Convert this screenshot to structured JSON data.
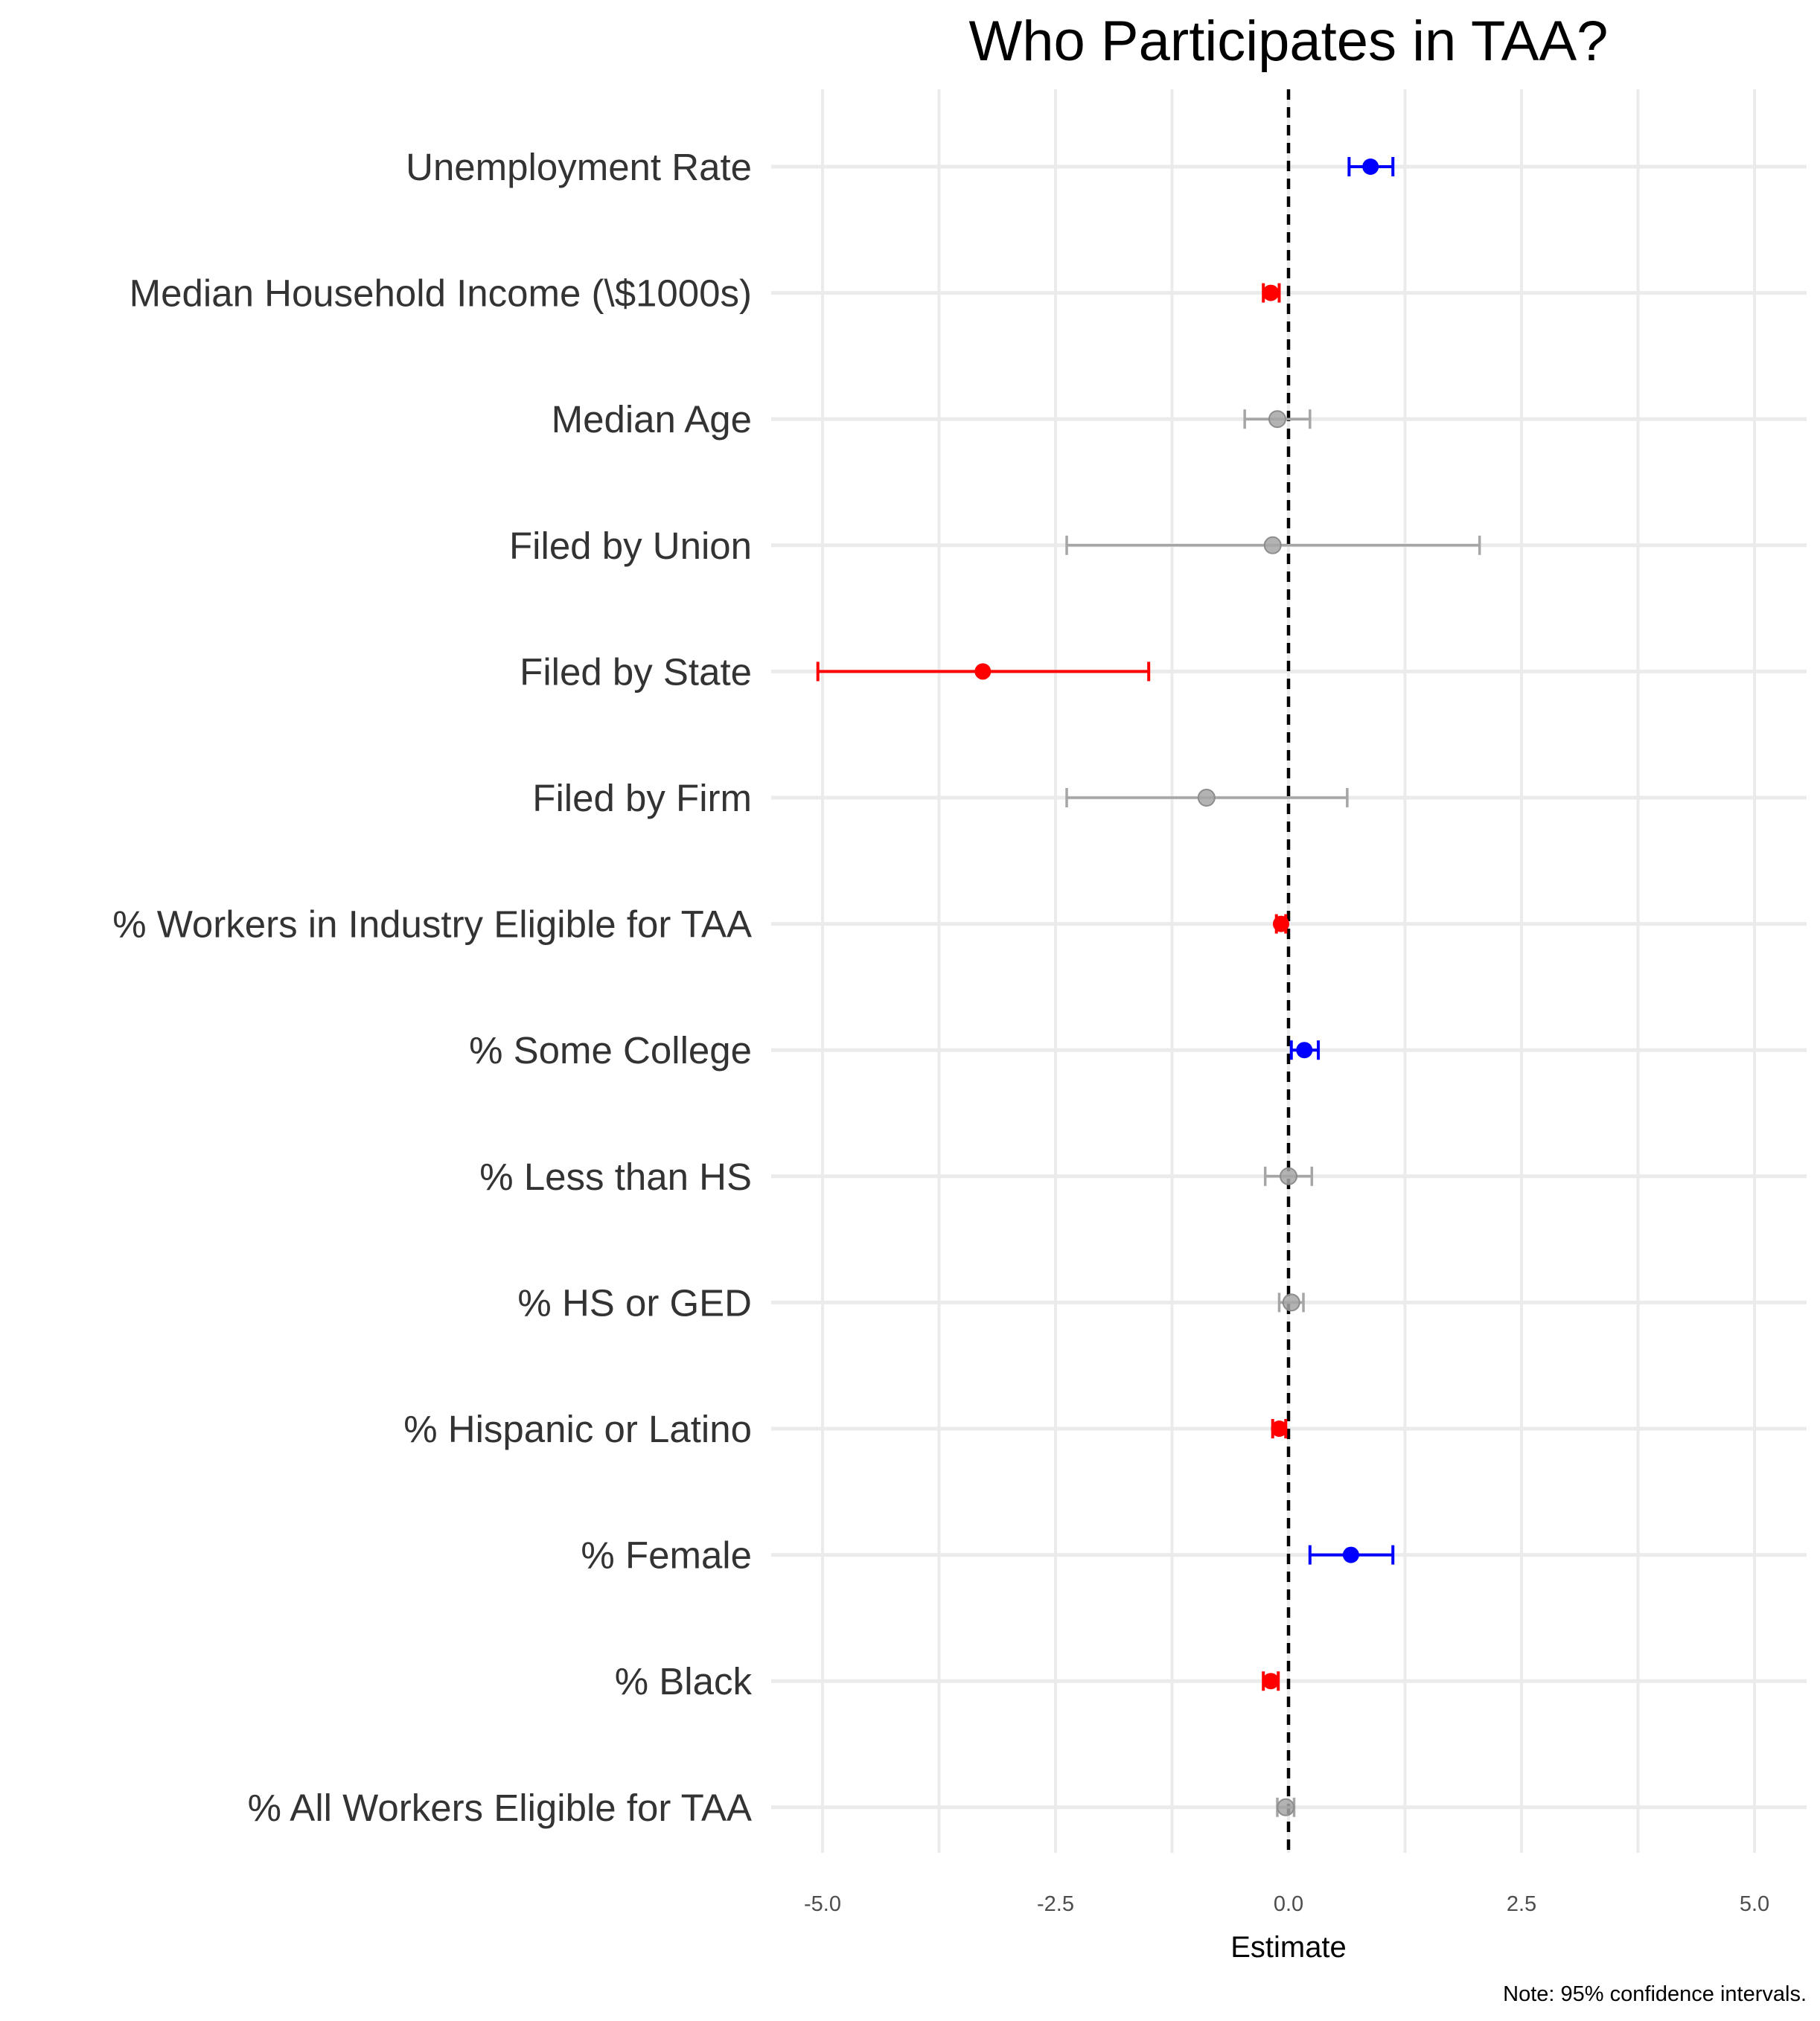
{
  "chart_data": {
    "type": "scatter",
    "subtype": "coefficient-plot-with-error-bars",
    "title": "Who Participates in TAA?",
    "xlabel": "Estimate",
    "ylabel": "",
    "note": "Note: 95% confidence intervals.",
    "xlim": [
      -5.5,
      5.5
    ],
    "x_ticks": [
      "-5.0",
      "-2.5",
      "0.0",
      "2.5",
      "5.0"
    ],
    "x_tick_values": [
      -5,
      -2.5,
      0,
      2.5,
      5
    ],
    "reference_line": 0,
    "grid": true,
    "legend": "none",
    "colors": {
      "positive": "#0000ff",
      "negative": "#ff0000",
      "not_significant": "#a6a6a6"
    },
    "series": [
      {
        "label": "Unemployment Rate",
        "estimate": 0.88,
        "lower": 0.65,
        "upper": 1.12,
        "sig": "positive"
      },
      {
        "label": "Median Household Income (\\$1000s)",
        "estimate": -0.19,
        "lower": -0.27,
        "upper": -0.1,
        "sig": "negative"
      },
      {
        "label": "Median Age",
        "estimate": -0.12,
        "lower": -0.47,
        "upper": 0.23,
        "sig": "not_significant"
      },
      {
        "label": "Filed by Union",
        "estimate": -0.17,
        "lower": -2.38,
        "upper": 2.05,
        "sig": "not_significant"
      },
      {
        "label": "Filed by State",
        "estimate": -3.28,
        "lower": -5.05,
        "upper": -1.5,
        "sig": "negative"
      },
      {
        "label": "Filed by Firm",
        "estimate": -0.88,
        "lower": -2.38,
        "upper": 0.63,
        "sig": "not_significant"
      },
      {
        "label": "% Workers in Industry Eligible for TAA",
        "estimate": -0.08,
        "lower": -0.13,
        "upper": -0.03,
        "sig": "negative"
      },
      {
        "label": "% Some College",
        "estimate": 0.17,
        "lower": 0.03,
        "upper": 0.32,
        "sig": "positive"
      },
      {
        "label": "% Less than HS",
        "estimate": 0.0,
        "lower": -0.25,
        "upper": 0.25,
        "sig": "not_significant"
      },
      {
        "label": "% HS or GED",
        "estimate": 0.03,
        "lower": -0.1,
        "upper": 0.16,
        "sig": "not_significant"
      },
      {
        "label": "% Hispanic or Latino",
        "estimate": -0.1,
        "lower": -0.17,
        "upper": -0.03,
        "sig": "negative"
      },
      {
        "label": "% Female",
        "estimate": 0.67,
        "lower": 0.23,
        "upper": 1.12,
        "sig": "positive"
      },
      {
        "label": "% Black",
        "estimate": -0.19,
        "lower": -0.27,
        "upper": -0.11,
        "sig": "negative"
      },
      {
        "label": "% All Workers Eligible for TAA",
        "estimate": -0.03,
        "lower": -0.12,
        "upper": 0.06,
        "sig": "not_significant"
      }
    ]
  }
}
